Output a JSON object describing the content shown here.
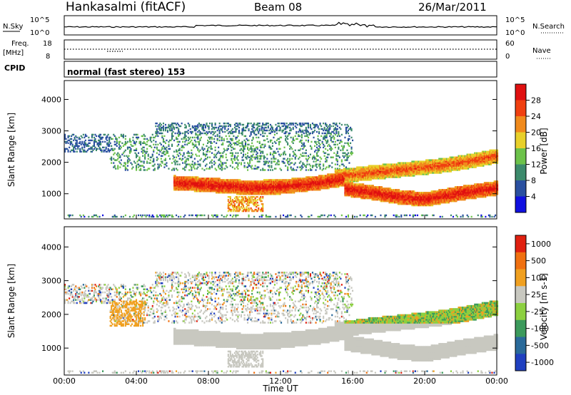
{
  "header": {
    "station": "Hankasalmi (fitACF)",
    "beam": "Beam 08",
    "date": "26/Mar/2011"
  },
  "noise_panel": {
    "left_label": "N.Sky",
    "right_label": "N.Search",
    "left_ticks": [
      "10^5",
      "10^0"
    ],
    "right_ticks": [
      "10^5",
      "10^0"
    ]
  },
  "freq_panel": {
    "left_label_1": "Freq.",
    "left_label_2": "[MHz]",
    "right_label": "Nave",
    "left_ticks": [
      "18",
      "8"
    ],
    "right_ticks": [
      "60",
      "0"
    ]
  },
  "cpid": {
    "label": "CPID",
    "text": "normal (fast stereo) 153"
  },
  "chart_data": [
    {
      "type": "heatmap",
      "ylabel": "Slant Range [km]",
      "x_ticks": [
        "00:00",
        "04:00",
        "08:00",
        "12:00",
        "16:00",
        "20:00",
        "00:00"
      ],
      "y_ticks": [
        1000,
        2000,
        3000,
        4000
      ],
      "ylim": [
        200,
        4600
      ],
      "colorbar": {
        "label": "Power [dB]",
        "ticks": [
          "4",
          "8",
          "12",
          "16",
          "20",
          "24",
          "28"
        ],
        "colors": [
          "#1010e0",
          "#2a50a0",
          "#3c8a6c",
          "#6cc24a",
          "#e8d02a",
          "#f08a1c",
          "#f04010",
          "#e01010"
        ]
      },
      "bands": [
        {
          "name": "main echo",
          "x": [
            6.0,
            8.0,
            10.0,
            12.0,
            14.0,
            15.5
          ],
          "y": [
            1330,
            1260,
            1180,
            1200,
            1320,
            1450
          ],
          "value": 28
        },
        {
          "name": "lower echo",
          "x": [
            15.5,
            17.0,
            18.5,
            20.0,
            22.0,
            24.0
          ],
          "y": [
            1140,
            1020,
            880,
            800,
            1000,
            1160
          ],
          "value": 28
        },
        {
          "name": "upper echo",
          "x": [
            15.0,
            17.0,
            19.0,
            21.0,
            22.5,
            24.0
          ],
          "y": [
            1520,
            1650,
            1760,
            1880,
            2020,
            2180
          ],
          "value": 24
        }
      ]
    },
    {
      "type": "heatmap",
      "ylabel": "Slant Range [km]",
      "xlabel": "Time UT",
      "x_ticks": [
        "00:00",
        "04:00",
        "08:00",
        "12:00",
        "16:00",
        "20:00",
        "00:00"
      ],
      "y_ticks": [
        1000,
        2000,
        3000,
        4000
      ],
      "ylim": [
        200,
        4600
      ],
      "colorbar": {
        "label": "Velocity [m s-1]",
        "ticks": [
          "1000",
          "500",
          "100",
          "25",
          "-25",
          "-100",
          "-500",
          "-1000"
        ],
        "colors": [
          "#2040c0",
          "#2a6a9a",
          "#3c9a5c",
          "#8cd040",
          "#c8c8c0",
          "#f0a020",
          "#f07010",
          "#e02010"
        ]
      }
    }
  ],
  "colors": {
    "ground_scatter": "#c8c8c0",
    "background": "#ffffff"
  }
}
